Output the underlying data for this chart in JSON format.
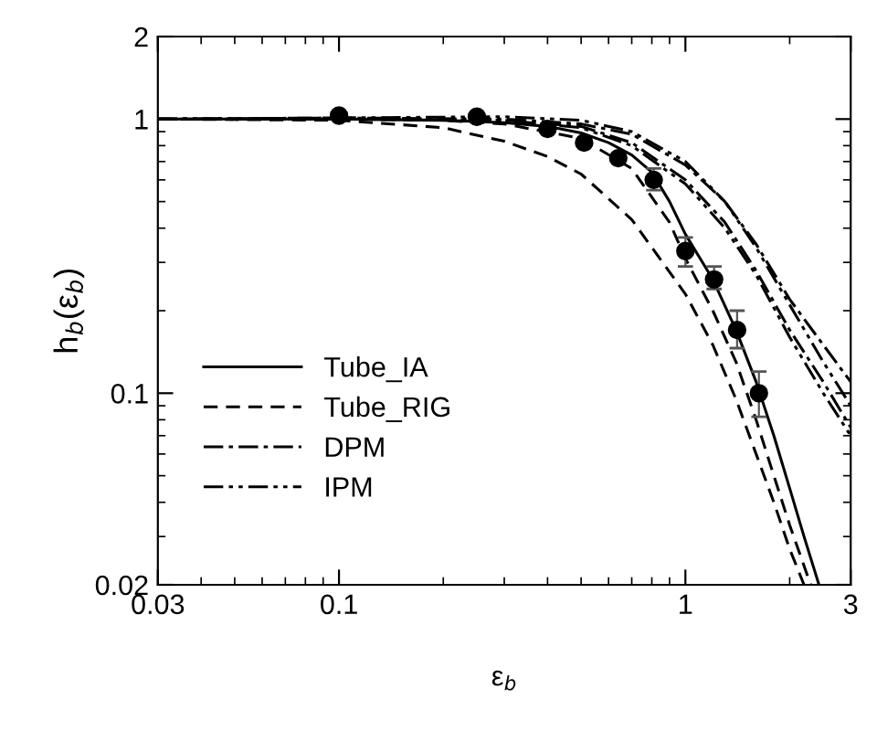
{
  "chart_data": {
    "type": "line",
    "xlabel": "ε$_{b}$",
    "ylabel": "h$_{b}$(ε$_{b}$)",
    "log": "xy",
    "xlim": [
      0.03,
      3
    ],
    "ylim": [
      0.02,
      2
    ],
    "xticks": [
      0.03,
      0.1,
      1,
      3
    ],
    "yticks": [
      0.02,
      0.1,
      1,
      2
    ],
    "grid": false,
    "legend": "bottom left",
    "series": [
      {
        "type": "scatter",
        "marker": "circle",
        "color": "#000000",
        "x": [
          0.1,
          0.25,
          0.4,
          0.51,
          0.64,
          0.81,
          1.0,
          1.21,
          1.41,
          1.63
        ],
        "values": [
          1.03,
          1.02,
          0.92,
          0.82,
          0.72,
          0.6,
          0.33,
          0.26,
          0.17,
          0.1
        ],
        "errors": [
          null,
          null,
          null,
          null,
          null,
          [
            0.55,
            0.66
          ],
          [
            0.29,
            0.37
          ],
          [
            0.24,
            0.29
          ],
          [
            0.146,
            0.2
          ],
          [
            0.082,
            0.12
          ]
        ]
      },
      {
        "name": "Tube_IA",
        "line_style": "solid",
        "color": "#000000",
        "x": [
          0.03,
          0.1,
          0.2,
          0.3,
          0.4,
          0.5,
          0.6,
          0.7,
          0.8,
          0.9,
          1.0,
          1.2,
          1.4,
          1.6,
          1.8,
          2.0,
          2.2,
          2.43
        ],
        "values": [
          1,
          1,
          0.99,
          0.97,
          0.94,
          0.89,
          0.82,
          0.74,
          0.64,
          0.5,
          0.38,
          0.26,
          0.17,
          0.11,
          0.07,
          0.045,
          0.03,
          0.02
        ]
      },
      {
        "name": "Tube_RIG",
        "line_style": "dashed",
        "color": "#000000",
        "x": [
          0.03,
          0.1,
          0.2,
          0.3,
          0.4,
          0.5,
          0.7,
          1.0,
          1.2,
          1.4,
          1.6,
          1.8,
          2.0,
          2.2
        ],
        "values": [
          1,
          0.99,
          0.93,
          0.83,
          0.73,
          0.63,
          0.43,
          0.23,
          0.15,
          0.095,
          0.06,
          0.04,
          0.027,
          0.02
        ]
      },
      {
        "line_style": "dashed",
        "color": "#000000",
        "x": [
          0.03,
          0.1,
          0.2,
          0.3,
          0.5,
          0.7,
          0.9,
          1.0,
          1.2,
          1.4,
          1.6,
          1.8,
          2.0,
          2.3
        ],
        "values": [
          1,
          1,
          0.99,
          0.96,
          0.85,
          0.66,
          0.42,
          0.31,
          0.2,
          0.13,
          0.08,
          0.05,
          0.033,
          0.02
        ]
      },
      {
        "name": "DPM",
        "line_style": "dashdot",
        "color": "#000000",
        "x": [
          0.03,
          0.1,
          0.3,
          0.5,
          0.7,
          1.0,
          1.3,
          1.6,
          2.0,
          2.5,
          3.0
        ],
        "values": [
          1,
          1.01,
          1.0,
          0.96,
          0.88,
          0.68,
          0.5,
          0.35,
          0.22,
          0.15,
          0.11
        ]
      },
      {
        "line_style": "dashdot",
        "color": "#000000",
        "x": [
          0.03,
          0.1,
          0.3,
          0.5,
          0.7,
          1.0,
          1.3,
          1.6,
          2.0,
          2.5,
          3.0
        ],
        "values": [
          1,
          1,
          0.99,
          0.94,
          0.82,
          0.6,
          0.42,
          0.28,
          0.17,
          0.11,
          0.075
        ]
      },
      {
        "name": "IPM",
        "line_style": "dashdotdot",
        "color": "#000000",
        "x": [
          0.03,
          0.1,
          0.3,
          0.5,
          0.7,
          1.0,
          1.3,
          1.6,
          2.0,
          2.5,
          3.0
        ],
        "values": [
          1,
          1.01,
          1.02,
          0.99,
          0.9,
          0.7,
          0.5,
          0.34,
          0.21,
          0.13,
          0.09
        ]
      },
      {
        "line_style": "dashdotdot",
        "color": "#000000",
        "x": [
          0.03,
          0.1,
          0.3,
          0.5,
          0.7,
          1.0,
          1.3,
          1.6,
          2.0,
          2.5,
          3.0
        ],
        "values": [
          1,
          1,
          0.99,
          0.93,
          0.8,
          0.58,
          0.4,
          0.27,
          0.16,
          0.1,
          0.07
        ]
      }
    ]
  }
}
